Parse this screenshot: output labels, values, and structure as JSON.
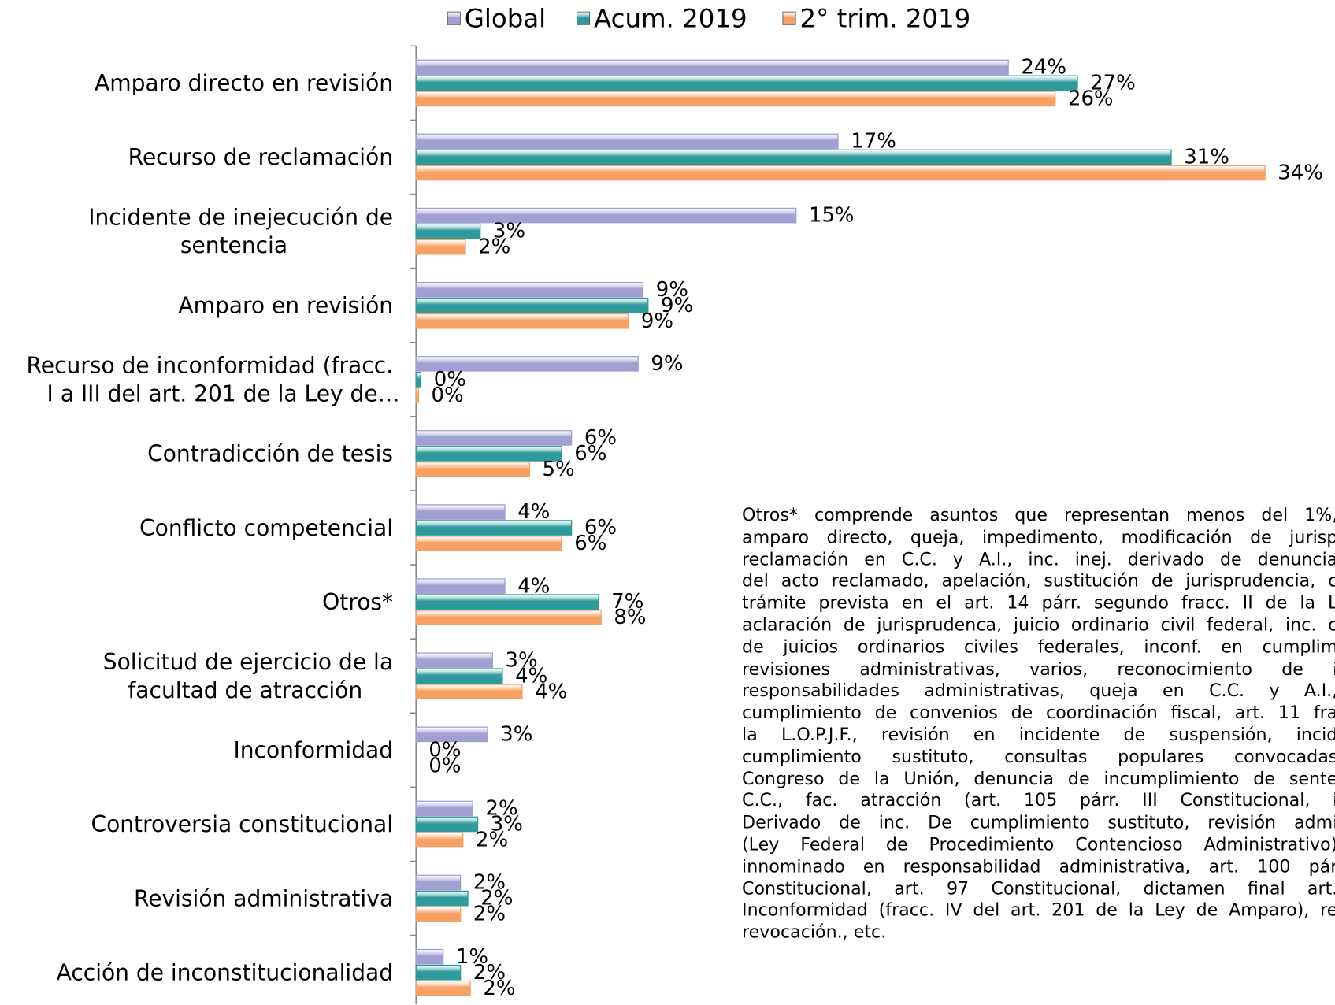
{
  "chart_data": {
    "type": "hbar",
    "categories": [
      "Amparo directo en revisión",
      "Recurso de reclamación",
      "Incidente de inejecución de\nsentencia",
      "Amparo en revisión",
      "Recurso de inconformidad (fracc.\nI a III del art. 201 de la Ley de…",
      "Contradicción de tesis",
      "Conflicto competencial",
      "Otros*",
      "Solicitud de ejercicio de la\nfacultad de atracción",
      "Inconformidad",
      "Controversia constitucional",
      "Revisión administrativa",
      "Acción de inconstitucionalidad"
    ],
    "series": [
      {
        "name": "Global",
        "color": "#a29fd3",
        "values": [
          24.0,
          17.1,
          15.4,
          9.2,
          9.0,
          6.3,
          3.6,
          3.6,
          3.1,
          2.9,
          2.3,
          1.8,
          1.1
        ],
        "value_labels": [
          "24%",
          "17%",
          "15%",
          "9%",
          "9%",
          "6%",
          "4%",
          "4%",
          "3%",
          "3%",
          "2%",
          "2%",
          "1%"
        ]
      },
      {
        "name": "Acum. 2019",
        "color": "#2e9a9c",
        "values": [
          26.8,
          30.6,
          2.6,
          9.4,
          0.2,
          5.9,
          6.3,
          7.4,
          3.5,
          0,
          2.5,
          2.1,
          1.8
        ],
        "value_labels": [
          "27%",
          "31%",
          "3%",
          "9%",
          "0%",
          "6%",
          "6%",
          "7%",
          "4%",
          "0%",
          "3%",
          "2%",
          "2%"
        ]
      },
      {
        "name": "2° trim. 2019",
        "color": "#f7a063",
        "values": [
          25.9,
          34.4,
          2.0,
          8.6,
          0.1,
          4.6,
          5.9,
          7.5,
          4.3,
          0,
          1.9,
          1.8,
          2.2
        ],
        "value_labels": [
          "26%",
          "34%",
          "2%",
          "9%",
          "0%",
          "5%",
          "6%",
          "8%",
          "4%",
          "0%",
          "2%",
          "2%",
          "2%"
        ]
      }
    ],
    "xlim": [
      0,
      36
    ],
    "legend": "top",
    "note": [
      "Otros* comprende asuntos que representan menos del 1%,",
      "amparo directo, queja, impedimento, modificación de jurisp",
      "reclamación en C.C. y A.I., inc. inej. derivado de denuncia",
      "del acto reclamado, apelación, sustitución de jurisprudencia, c",
      "trámite prevista en el art. 14 párr. segundo fracc. II de la L",
      "aclaración de jurisprudenca, juicio ordinario civil federal, inc. c",
      "de juicios ordinarios civiles federales, inconf. en cumplim",
      "revisiones administrativas, varios, reconocimiento de i",
      "responsabilidades administrativas, queja en C.C. y A.I.,",
      "cumplimiento de convenios de coordinación fiscal, art. 11 fra",
      "la L.O.P.J.F., revisión en incidente de suspensión, incid",
      "cumplimiento sustituto, consultas populares convocadas",
      "Congreso de la Unión, denuncia de incumplimiento de sente",
      "C.C., fac. atracción (art. 105 párr. III Constitucional, i",
      "Derivado de inc. De cumplimiento sustituto, revisión admi",
      "(Ley Federal de Procedimiento Contencioso Administrativo)",
      "innominado en responsabilidad administrativa,  art. 100 pár",
      "Constitucional, art. 97 Constitucional, dictamen final art.",
      "Inconformidad (fracc. IV del art. 201 de la Ley de Amparo), re",
      "revocación., etc."
    ]
  }
}
